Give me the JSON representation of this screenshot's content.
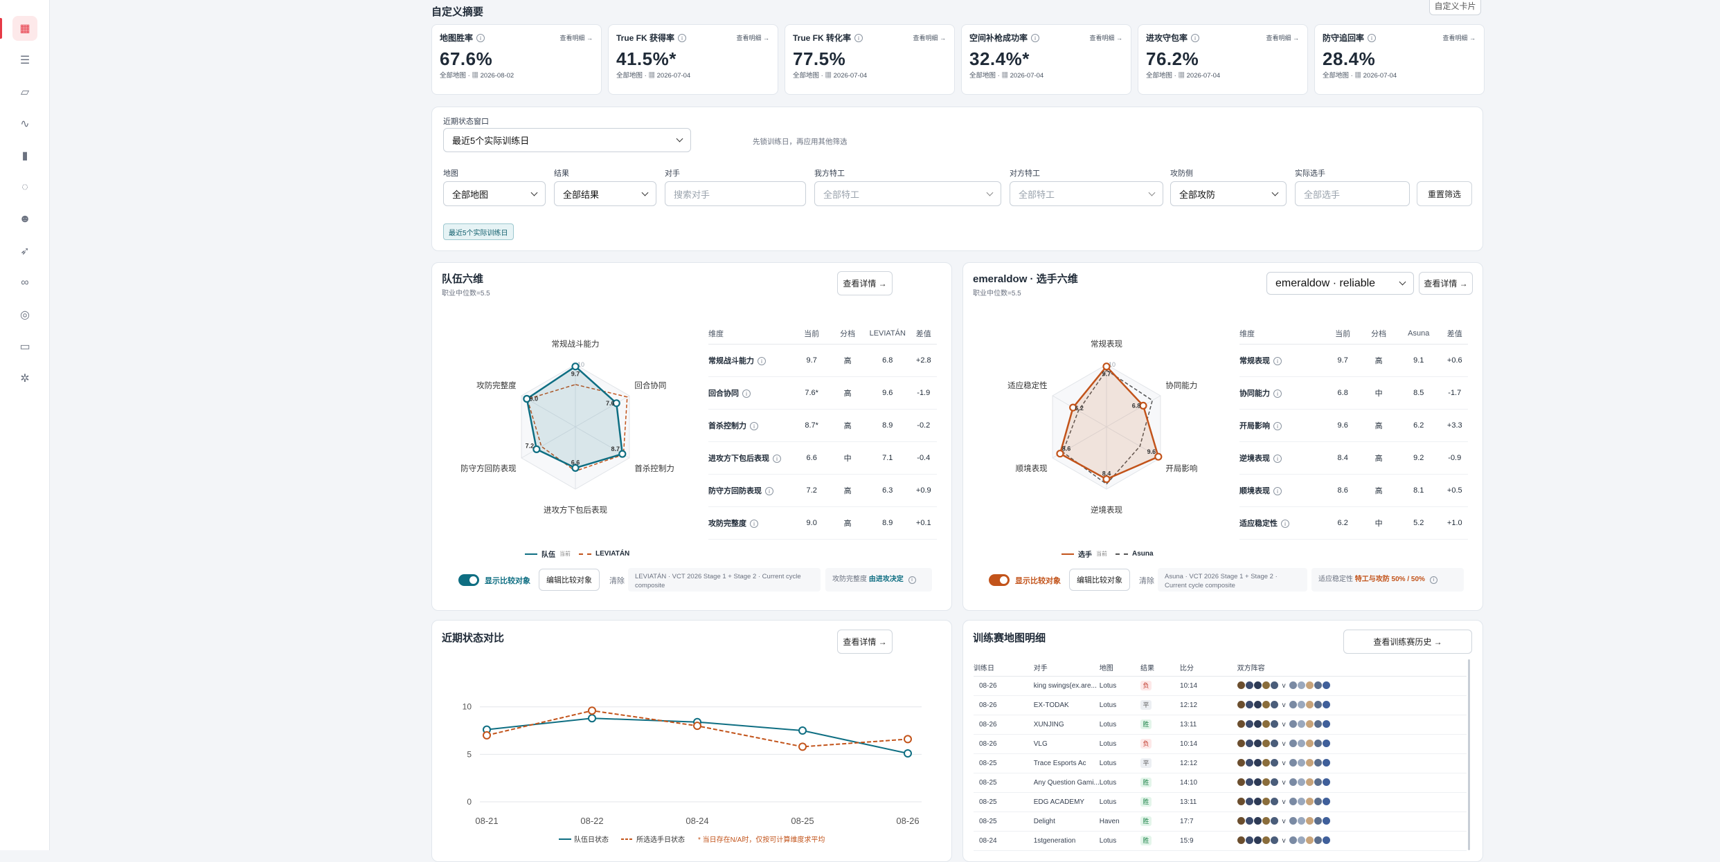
{
  "sidebar": {
    "icons": [
      "dashboard-icon",
      "list-icon",
      "map-icon",
      "activity-icon",
      "bar-chart-icon",
      "lightbulb-icon",
      "team-icon",
      "rocket-icon",
      "binoculars-icon",
      "target-icon",
      "presentation-icon",
      "settings-icon"
    ]
  },
  "summary": {
    "title": "自定义摘要",
    "custom_button": "自定义卡片",
    "kpis": [
      {
        "label": "地图胜率",
        "more": "查看明细 →",
        "value": "67.6%",
        "scope": "全部地图",
        "date": "2026-08-02"
      },
      {
        "label": "True FK 获得率",
        "more": "查看明细 →",
        "value": "41.5%*",
        "scope": "全部地图",
        "date": "2026-07-04"
      },
      {
        "label": "True FK 转化率",
        "more": "查看明细 →",
        "value": "77.5%",
        "scope": "全部地图",
        "date": "2026-07-04"
      },
      {
        "label": "空间补枪成功率",
        "more": "查看明细 →",
        "value": "32.4%*",
        "scope": "全部地图",
        "date": "2026-07-04"
      },
      {
        "label": "进攻守包率",
        "more": "查看明细 →",
        "value": "76.2%",
        "scope": "全部地图",
        "date": "2026-07-04"
      },
      {
        "label": "防守追回率",
        "more": "查看明细 →",
        "value": "28.4%",
        "scope": "全部地图",
        "date": "2026-07-04"
      }
    ]
  },
  "filters": {
    "window_label": "近期状态窗口",
    "window_value": "最近5个实际训练日",
    "window_hint": "先锁训练日，再应用其他筛选",
    "map_label": "地图",
    "map_value": "全部地图",
    "result_label": "结果",
    "result_value": "全部结果",
    "opponent_label": "对手",
    "opponent_placeholder": "搜索对手",
    "our_agents_label": "我方特工",
    "our_agents_placeholder": "全部特工",
    "enemy_agents_label": "对方特工",
    "enemy_agents_placeholder": "全部特工",
    "side_label": "攻防侧",
    "side_value": "全部攻防",
    "player_label": "实际选手",
    "player_placeholder": "全部选手",
    "reset_button": "重置筛选",
    "active_chip": "最近5个实际训练日"
  },
  "team_radar": {
    "title": "队伍六维",
    "subtitle": "职业中位数=5.5",
    "details_button": "查看详情 →",
    "axis_max": "10",
    "headers": [
      "维度",
      "当前",
      "分档",
      "LEVIATÁN",
      "差值"
    ],
    "rows": [
      {
        "name": "常规战斗能力",
        "current": "9.7",
        "tier": "高",
        "compare": "6.8",
        "diff": "+2.8"
      },
      {
        "name": "回合协同",
        "current": "7.6*",
        "tier": "高",
        "compare": "9.6",
        "diff": "-1.9"
      },
      {
        "name": "首杀控制力",
        "current": "8.7*",
        "tier": "高",
        "compare": "8.9",
        "diff": "-0.2"
      },
      {
        "name": "进攻方下包后表现",
        "current": "6.6",
        "tier": "中",
        "compare": "7.1",
        "diff": "-0.4"
      },
      {
        "name": "防守方回防表现",
        "current": "7.2",
        "tier": "高",
        "compare": "6.3",
        "diff": "+0.9"
      },
      {
        "name": "攻防完整度",
        "current": "9.0",
        "tier": "高",
        "compare": "8.9",
        "diff": "+0.1"
      }
    ],
    "point_labels": [
      "9.7",
      "7.6",
      "8.7",
      "6.6",
      "7.2",
      "9.0"
    ],
    "values": [
      9.7,
      7.6,
      8.7,
      6.6,
      7.2,
      9.0
    ],
    "compare_values": [
      6.8,
      9.6,
      8.9,
      7.1,
      6.3,
      8.9
    ],
    "legend_current": "队伍",
    "legend_current_note": "当前",
    "legend_compare": "LEVIATÁN",
    "toggle_label": "显示比较对象",
    "edit_button": "编辑比较对象",
    "clear_link": "清除",
    "compare_info": "LEVIATÁN · VCT 2026 Stage 1 + Stage 2 · Current cycle composite",
    "note_label": "攻防完整度",
    "note_value": "由进攻决定",
    "color": "#0e6e82",
    "compare_color": "#c2531a"
  },
  "player_radar": {
    "title": "emeraldow · 选手六维",
    "subtitle": "职业中位数=5.5",
    "select_value": "emeraldow · reliable",
    "details_button": "查看详情 →",
    "axis_max": "10",
    "headers": [
      "维度",
      "当前",
      "分档",
      "Asuna",
      "差值"
    ],
    "rows": [
      {
        "name": "常规表现",
        "current": "9.7",
        "tier": "高",
        "compare": "9.1",
        "diff": "+0.6"
      },
      {
        "name": "协同能力",
        "current": "6.8",
        "tier": "中",
        "compare": "8.5",
        "diff": "-1.7"
      },
      {
        "name": "开局影响",
        "current": "9.6",
        "tier": "高",
        "compare": "6.2",
        "diff": "+3.3"
      },
      {
        "name": "逆境表现",
        "current": "8.4",
        "tier": "高",
        "compare": "9.2",
        "diff": "-0.9"
      },
      {
        "name": "顺境表现",
        "current": "8.6",
        "tier": "高",
        "compare": "8.1",
        "diff": "+0.5"
      },
      {
        "name": "适应稳定性",
        "current": "6.2",
        "tier": "中",
        "compare": "5.2",
        "diff": "+1.0"
      }
    ],
    "point_labels": [
      "9.7",
      "6.8",
      "9.6",
      "8.4",
      "8.6",
      "6.2"
    ],
    "values": [
      9.7,
      6.8,
      9.6,
      8.4,
      8.6,
      6.2
    ],
    "compare_values": [
      9.1,
      8.5,
      6.2,
      9.2,
      8.1,
      5.2
    ],
    "legend_current": "选手",
    "legend_current_note": "当前",
    "legend_compare": "Asuna",
    "toggle_label": "显示比较对象",
    "edit_button": "编辑比较对象",
    "clear_link": "清除",
    "compare_info": "Asuna · VCT 2026 Stage 1 + Stage 2 · Current cycle composite",
    "note_label": "适应稳定性",
    "note_value": "特工与攻防 50% / 50%",
    "color": "#c2531a",
    "compare_color": "#555555"
  },
  "trend": {
    "title": "近期状态对比",
    "details_button": "查看详情 →",
    "legend_team": "队伍日状态",
    "legend_player": "所选选手日状态",
    "legend_note": "* 当日存在N/A时，仅按可计算维度求平均",
    "team_color": "#0e6e82",
    "player_color": "#c2531a"
  },
  "chart_data": {
    "type": "line",
    "x": [
      "08-21",
      "08-22",
      "08-24",
      "08-25",
      "08-26"
    ],
    "series": [
      {
        "name": "队伍日状态",
        "values": [
          7.6,
          8.8,
          8.4,
          7.5,
          5.1
        ]
      },
      {
        "name": "所选选手日状态",
        "values": [
          7.0,
          9.6,
          8.0,
          5.8,
          6.6
        ]
      }
    ],
    "yticks": [
      0,
      5,
      10
    ],
    "ylim": [
      0,
      11
    ],
    "grid": true,
    "legend": "bottom"
  },
  "matches": {
    "title": "训练赛地图明细",
    "history_button": "查看训练赛历史 →",
    "headers": [
      "训练日",
      "对手",
      "地图",
      "结果",
      "比分",
      "双方阵容"
    ],
    "rows": [
      {
        "date": "08-26",
        "opponent": "king swings(ex.are...",
        "map": "Lotus",
        "result": "负",
        "score": "10:14"
      },
      {
        "date": "08-26",
        "opponent": "EX-TODAK",
        "map": "Lotus",
        "result": "平",
        "score": "12:12"
      },
      {
        "date": "08-26",
        "opponent": "XUNJING",
        "map": "Lotus",
        "result": "胜",
        "score": "13:11"
      },
      {
        "date": "08-26",
        "opponent": "VLG",
        "map": "Lotus",
        "result": "负",
        "score": "10:14"
      },
      {
        "date": "08-25",
        "opponent": "Trace Esports Ac",
        "map": "Lotus",
        "result": "平",
        "score": "12:12"
      },
      {
        "date": "08-25",
        "opponent": "Any Question Gami...",
        "map": "Lotus",
        "result": "胜",
        "score": "14:10"
      },
      {
        "date": "08-25",
        "opponent": "EDG ACADEMY",
        "map": "Lotus",
        "result": "胜",
        "score": "13:11"
      },
      {
        "date": "08-25",
        "opponent": "Delight",
        "map": "Haven",
        "result": "胜",
        "score": "17:7"
      },
      {
        "date": "08-24",
        "opponent": "1stgeneration",
        "map": "Lotus",
        "result": "胜",
        "score": "15:9"
      }
    ],
    "vs": "v"
  }
}
